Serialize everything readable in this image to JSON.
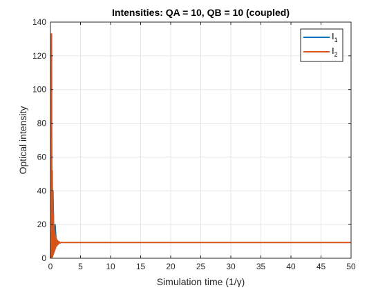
{
  "chart_data": {
    "type": "line",
    "title": "Intensities: QA = 10, QB = 10 (coupled)",
    "xlabel": "Simulation time (1/γ)",
    "ylabel": "Optical intensity",
    "xlim": [
      0,
      50
    ],
    "ylim": [
      0,
      140
    ],
    "xticks": [
      0,
      5,
      10,
      15,
      20,
      25,
      30,
      35,
      40,
      45,
      50
    ],
    "yticks": [
      0,
      20,
      40,
      60,
      80,
      100,
      120,
      140
    ],
    "grid": true,
    "legend_position": "top-right",
    "steady_state": 9.3,
    "colors": {
      "I1": "#0072BD",
      "I2": "#D95319",
      "grid": "#e6e6e6",
      "axis": "#262626"
    },
    "series": [
      {
        "name": "I",
        "sub": "1",
        "color": "#0072BD",
        "x": [
          0,
          0.15,
          0.3,
          0.45,
          0.6,
          0.8,
          1.0,
          1.3,
          1.6,
          2,
          50
        ],
        "y": [
          0,
          100,
          5,
          40,
          8,
          20,
          8.5,
          10,
          9.2,
          9.3,
          9.3
        ]
      },
      {
        "name": "I",
        "sub": "2",
        "color": "#D95319",
        "x": [
          0,
          0.05,
          0.1,
          0.18,
          0.24,
          0.3,
          0.35,
          0.4,
          0.45,
          0.5,
          0.55,
          0.6,
          0.65,
          0.7,
          0.75,
          0.8,
          0.85,
          0.9,
          0.95,
          1.0,
          1.1,
          1.2,
          1.3,
          1.45,
          1.6,
          1.8,
          2.0,
          50
        ],
        "y": [
          0,
          2,
          1,
          133,
          0.5,
          52,
          1,
          40,
          2,
          26,
          3,
          20,
          4,
          16,
          5,
          14,
          6,
          12.5,
          7,
          11.5,
          7.5,
          10.5,
          8.3,
          9.8,
          9.0,
          9.4,
          9.3,
          9.3
        ]
      }
    ]
  }
}
